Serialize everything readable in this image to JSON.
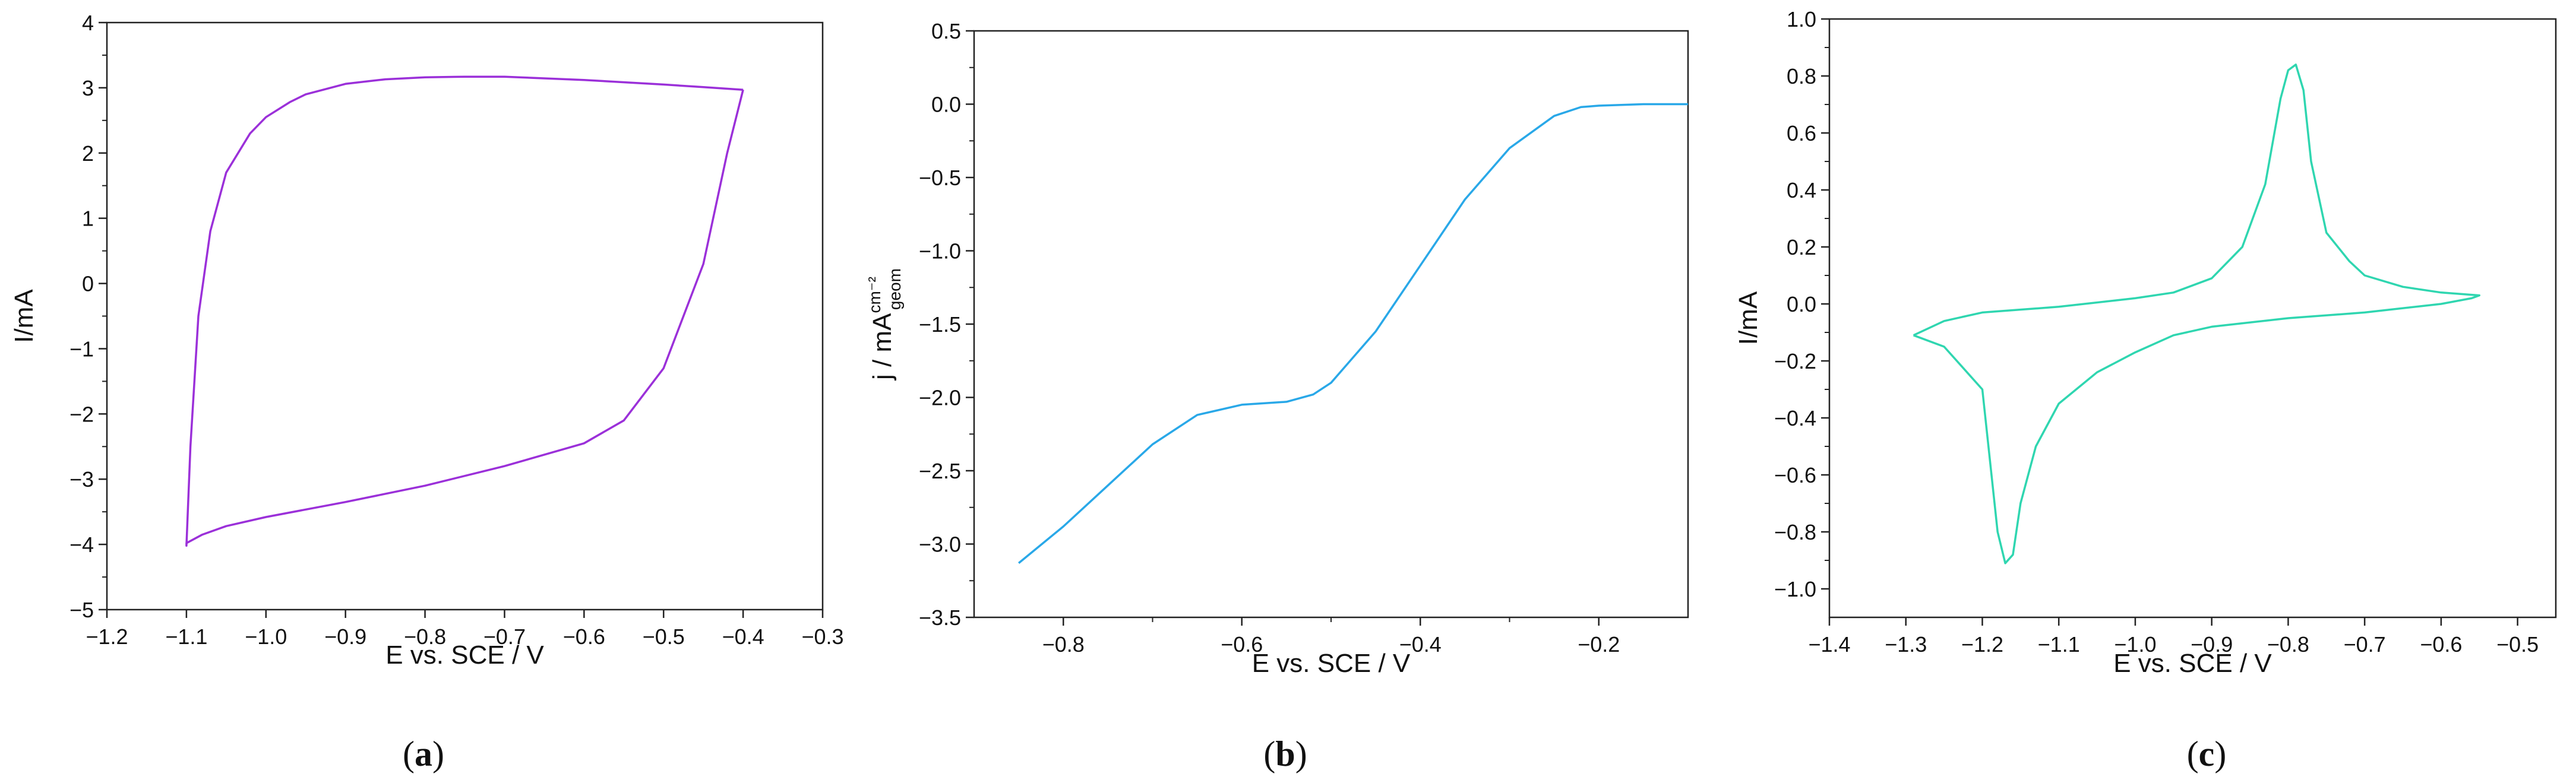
{
  "chart_data": [
    {
      "type": "line",
      "caption": "a",
      "xlabel": "E vs. SCE / V",
      "ylabel": "I/mA",
      "xlim": [
        -1.2,
        -0.3
      ],
      "ylim": [
        -5,
        4
      ],
      "xticks": [
        -1.2,
        -1.1,
        -1.0,
        -0.9,
        -0.8,
        -0.7,
        -0.6,
        -0.5,
        -0.4,
        -0.3
      ],
      "yticks": [
        -5,
        -4,
        -3,
        -2,
        -1,
        0,
        1,
        2,
        3,
        4
      ],
      "xtick_labels": [
        "−1.2",
        "−1.1",
        "−1.0",
        "−0.9",
        "−0.8",
        "−0.7",
        "−0.6",
        "−0.5",
        "−0.4",
        "−0.3"
      ],
      "ytick_labels": [
        "−5",
        "−4",
        "−3",
        "−2",
        "−1",
        "0",
        "1",
        "2",
        "3",
        "4"
      ],
      "color": "#9b30d9",
      "series": [
        {
          "x": [
            -0.4,
            -0.42,
            -0.45,
            -0.5,
            -0.55,
            -0.6,
            -0.7,
            -0.8,
            -0.9,
            -1.0,
            -1.05,
            -1.08,
            -1.1,
            -1.1,
            -1.095,
            -1.085,
            -1.07,
            -1.05,
            -1.02,
            -1.0,
            -0.97,
            -0.95,
            -0.9,
            -0.85,
            -0.8,
            -0.75,
            -0.7,
            -0.6,
            -0.5,
            -0.45,
            -0.4
          ],
          "y": [
            2.97,
            2.0,
            0.3,
            -1.3,
            -2.1,
            -2.45,
            -2.8,
            -3.1,
            -3.35,
            -3.58,
            -3.72,
            -3.85,
            -3.98,
            -4.02,
            -2.5,
            -0.5,
            0.8,
            1.7,
            2.3,
            2.55,
            2.78,
            2.9,
            3.06,
            3.13,
            3.16,
            3.17,
            3.17,
            3.12,
            3.05,
            3.01,
            2.97
          ]
        }
      ]
    },
    {
      "type": "line",
      "caption": "b",
      "xlabel": "E vs. SCE / V",
      "ylabel_main": "j / mA",
      "ylabel_sup": "cm⁻²",
      "ylabel_sub": "geom",
      "xlim": [
        -0.9,
        -0.1
      ],
      "ylim": [
        -3.5,
        0.5
      ],
      "xticks": [
        -0.8,
        -0.6,
        -0.4,
        -0.2
      ],
      "yticks": [
        -3.5,
        -3.0,
        -2.5,
        -2.0,
        -1.5,
        -1.0,
        -0.5,
        0.0,
        0.5
      ],
      "xtick_labels": [
        "−0.8",
        "−0.6",
        "−0.4",
        "−0.2"
      ],
      "ytick_labels": [
        "−3.5",
        "−3.0",
        "−2.5",
        "−2.0",
        "−1.5",
        "−1.0",
        "−0.5",
        "0.0",
        "0.5"
      ],
      "color": "#29a8e8",
      "series": [
        {
          "x": [
            -0.85,
            -0.8,
            -0.75,
            -0.7,
            -0.65,
            -0.6,
            -0.55,
            -0.52,
            -0.5,
            -0.45,
            -0.4,
            -0.35,
            -0.3,
            -0.25,
            -0.22,
            -0.2,
            -0.15,
            -0.1
          ],
          "y": [
            -3.13,
            -2.88,
            -2.6,
            -2.32,
            -2.12,
            -2.05,
            -2.03,
            -1.98,
            -1.9,
            -1.55,
            -1.1,
            -0.65,
            -0.3,
            -0.08,
            -0.02,
            -0.01,
            0.0,
            0.0
          ]
        }
      ]
    },
    {
      "type": "line",
      "caption": "c",
      "xlabel": "E vs. SCE / V",
      "ylabel": "I/mA",
      "xlim": [
        -1.4,
        -0.45
      ],
      "ylim": [
        -1.1,
        1.0
      ],
      "xticks": [
        -1.4,
        -1.3,
        -1.2,
        -1.1,
        -1.0,
        -0.9,
        -0.8,
        -0.7,
        -0.6,
        -0.5
      ],
      "yticks": [
        -1.0,
        -0.8,
        -0.6,
        -0.4,
        -0.2,
        0.0,
        0.2,
        0.4,
        0.6,
        0.8,
        1.0
      ],
      "xtick_labels": [
        "−1.4",
        "−1.3",
        "−1.2",
        "−1.1",
        "−1.0",
        "−0.9",
        "−0.8",
        "−0.7",
        "−0.6",
        "−0.5"
      ],
      "ytick_labels": [
        "−1.0",
        "−0.8",
        "−0.6",
        "−0.4",
        "−0.2",
        "0.0",
        "0.2",
        "0.4",
        "0.6",
        "0.8",
        "1.0"
      ],
      "color": "#2fd6b0",
      "series": [
        {
          "x": [
            -1.29,
            -1.25,
            -1.2,
            -1.1,
            -1.0,
            -0.95,
            -0.9,
            -0.86,
            -0.83,
            -0.81,
            -0.8,
            -0.79,
            -0.78,
            -0.77,
            -0.75,
            -0.72,
            -0.7,
            -0.65,
            -0.6,
            -0.55,
            -0.56,
            -0.6,
            -0.7,
            -0.8,
            -0.9,
            -0.95,
            -1.0,
            -1.05,
            -1.1,
            -1.13,
            -1.15,
            -1.16,
            -1.17,
            -1.18,
            -1.2,
            -1.25,
            -1.29
          ],
          "y": [
            -0.11,
            -0.06,
            -0.03,
            -0.01,
            0.02,
            0.04,
            0.09,
            0.2,
            0.42,
            0.72,
            0.82,
            0.84,
            0.75,
            0.5,
            0.25,
            0.15,
            0.1,
            0.06,
            0.04,
            0.03,
            0.02,
            0.0,
            -0.03,
            -0.05,
            -0.08,
            -0.11,
            -0.17,
            -0.24,
            -0.35,
            -0.5,
            -0.7,
            -0.88,
            -0.91,
            -0.8,
            -0.3,
            -0.15,
            -0.11
          ]
        }
      ]
    }
  ]
}
